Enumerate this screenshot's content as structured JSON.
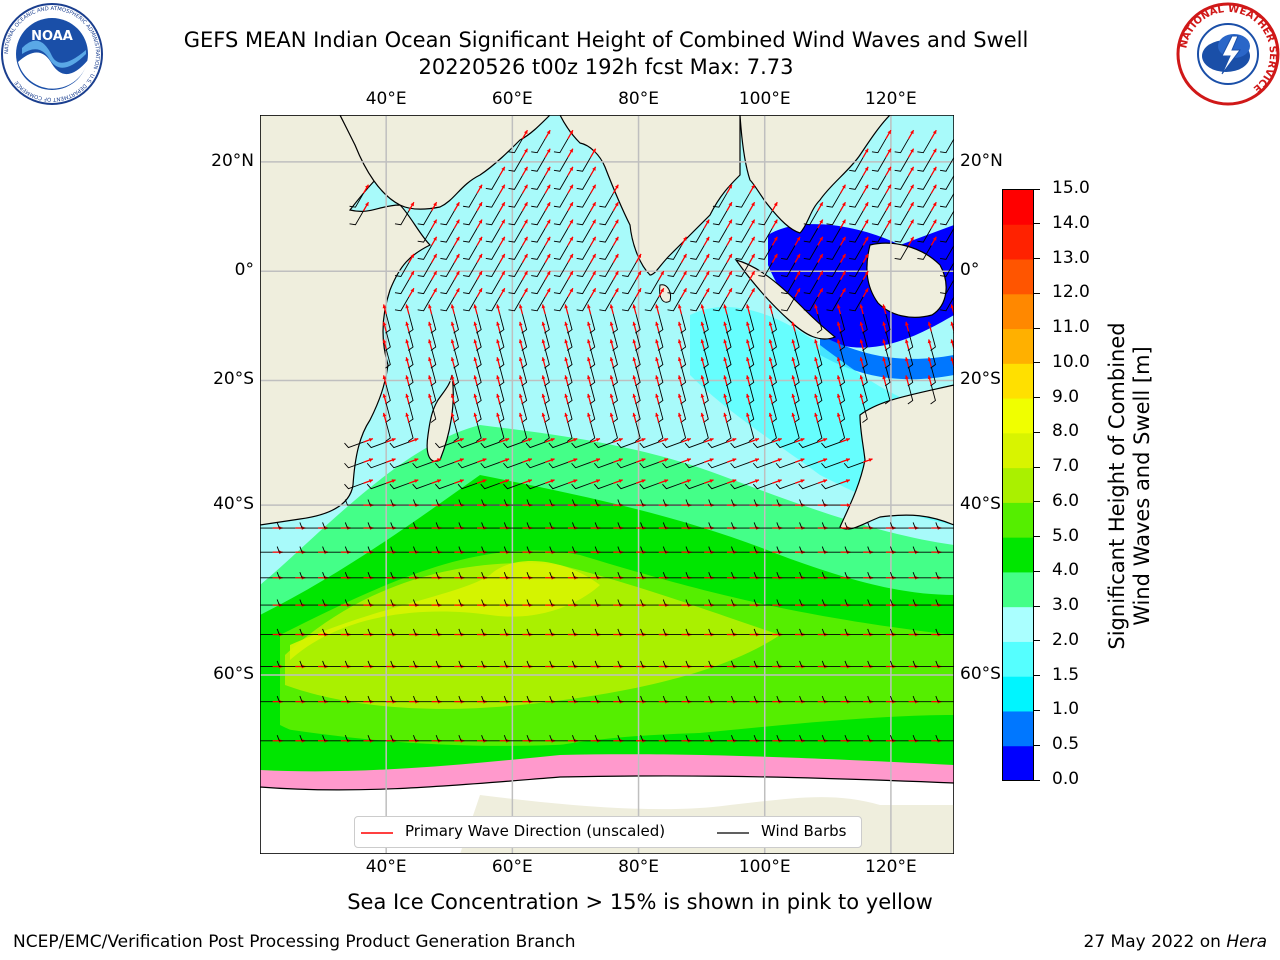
{
  "title": {
    "line1": "GEFS MEAN Indian Ocean Significant Height of Combined Wind Waves and Swell",
    "line2": "20220526 t00z 192h fcst   Max: 7.73"
  },
  "logos": {
    "left_badge": "NOAA",
    "left_ring": "NATIONAL OCEANIC AND ATMOSPHERIC ADMINISTRATION · U.S. DEPARTMENT OF COMMERCE",
    "right_ring": "NATIONAL WEATHER SERVICE"
  },
  "map": {
    "x_ticks": [
      {
        "label": "40°E",
        "lon": 40
      },
      {
        "label": "60°E",
        "lon": 60
      },
      {
        "label": "80°E",
        "lon": 80
      },
      {
        "label": "100°E",
        "lon": 100
      },
      {
        "label": "120°E",
        "lon": 120
      }
    ],
    "y_ticks": [
      {
        "label": "20°N",
        "lat": 20
      },
      {
        "label": "0°",
        "lat": 0
      },
      {
        "label": "20°S",
        "lat": -20
      },
      {
        "label": "40°S",
        "lat": -40
      },
      {
        "label": "60°S",
        "lat": -60
      }
    ],
    "lon_range": [
      20,
      130
    ],
    "lat_range": [
      -73,
      28
    ],
    "ocean_color": "#a8fafa",
    "land_color": "#efeedd",
    "ice_color": "#ffffff"
  },
  "legend": {
    "wave_direction": "Primary Wave Direction (unscaled)",
    "wind_barbs": "Wind Barbs"
  },
  "colorbar": {
    "title_line1": "Significant Height of Combined",
    "title_line2": "Wind Waves and Swell [m]",
    "levels": [
      "0.0",
      "0.5",
      "1.0",
      "1.5",
      "2.0",
      "3.0",
      "4.0",
      "5.0",
      "6.0",
      "7.0",
      "8.0",
      "9.0",
      "10.0",
      "11.0",
      "12.0",
      "13.0",
      "14.0",
      "15.0"
    ],
    "colors": [
      "#0000ff",
      "#0077ff",
      "#00f5ff",
      "#55ffff",
      "#aaffff",
      "#44ff88",
      "#00e600",
      "#55ee00",
      "#aaf000",
      "#d8f400",
      "#f0ff00",
      "#ffe000",
      "#ffb000",
      "#ff8800",
      "#ff5500",
      "#ff2200",
      "#ff0000"
    ]
  },
  "caption": "Sea Ice Concentration > 15% is shown in pink to yellow",
  "footer": {
    "left": "NCEP/EMC/Verification Post Processing Product Generation Branch",
    "right_prefix": "27 May 2022 on ",
    "right_host": "Hera"
  }
}
